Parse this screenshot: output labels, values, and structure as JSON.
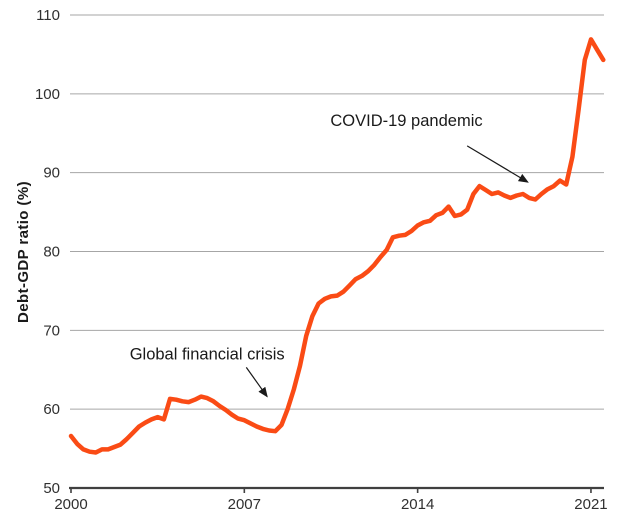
{
  "chart_data": {
    "type": "line",
    "title": "",
    "xlabel": "",
    "ylabel": "Debt-GDP ratio (%)",
    "x_unit": "year (quarterly observations)",
    "ylim": [
      50,
      110
    ],
    "yticks": [
      50,
      60,
      70,
      80,
      90,
      100,
      110
    ],
    "xticks": [
      2000,
      2007,
      2014,
      2021
    ],
    "grid": "horizontal",
    "legend": "none",
    "colors": {
      "line": "#FA4B15",
      "grid": "#A6A6A6",
      "axis": "#404040",
      "tick_text": "#303030",
      "annotation_text": "#1a1a1a",
      "background": "#ffffff"
    },
    "line_width": 4.5,
    "series": [
      {
        "name": "Debt-GDP ratio",
        "x": [
          2000,
          2000.25,
          2000.5,
          2000.75,
          2001,
          2001.25,
          2001.5,
          2001.75,
          2002,
          2002.25,
          2002.5,
          2002.75,
          2003,
          2003.25,
          2003.5,
          2003.75,
          2004,
          2004.25,
          2004.5,
          2004.75,
          2005,
          2005.25,
          2005.5,
          2005.75,
          2006,
          2006.25,
          2006.5,
          2006.75,
          2007,
          2007.25,
          2007.5,
          2007.75,
          2008,
          2008.25,
          2008.5,
          2008.75,
          2009,
          2009.25,
          2009.5,
          2009.75,
          2010,
          2010.25,
          2010.5,
          2010.75,
          2011,
          2011.25,
          2011.5,
          2011.75,
          2012,
          2012.25,
          2012.5,
          2012.75,
          2013,
          2013.25,
          2013.5,
          2013.75,
          2014,
          2014.25,
          2014.5,
          2014.75,
          2015,
          2015.25,
          2015.5,
          2015.75,
          2016,
          2016.25,
          2016.5,
          2016.75,
          2017,
          2017.25,
          2017.5,
          2017.75,
          2018,
          2018.25,
          2018.5,
          2018.75,
          2019,
          2019.25,
          2019.5,
          2019.75,
          2020,
          2020.25,
          2020.5,
          2020.75,
          2021,
          2021.25,
          2021.5
        ],
        "values": [
          56.6,
          55.6,
          54.9,
          54.6,
          54.5,
          54.9,
          54.9,
          55.2,
          55.5,
          56.2,
          57.0,
          57.8,
          58.3,
          58.7,
          59.0,
          58.7,
          61.3,
          61.2,
          61.0,
          60.9,
          61.2,
          61.6,
          61.4,
          61.0,
          60.4,
          59.9,
          59.3,
          58.8,
          58.6,
          58.2,
          57.8,
          57.5,
          57.3,
          57.2,
          58.0,
          60.0,
          62.5,
          65.5,
          69.3,
          71.8,
          73.4,
          74.0,
          74.3,
          74.4,
          74.9,
          75.7,
          76.5,
          76.9,
          77.5,
          78.3,
          79.3,
          80.2,
          81.8,
          82.0,
          82.1,
          82.6,
          83.3,
          83.7,
          83.9,
          84.6,
          84.9,
          85.7,
          84.5,
          84.7,
          85.3,
          87.3,
          88.3,
          87.8,
          87.3,
          87.5,
          87.1,
          86.8,
          87.1,
          87.3,
          86.8,
          86.6,
          87.3,
          87.9,
          88.3,
          89.0,
          88.5,
          92.0,
          98.0,
          104.3,
          106.9,
          105.6,
          104.3
        ]
      }
    ],
    "annotations": [
      {
        "text": "Global financial crisis",
        "text_anchor": {
          "year": 2005.5,
          "value": 66.3
        },
        "arrow": {
          "from": {
            "year": 2007.08,
            "value": 65.3
          },
          "to": {
            "year": 2007.92,
            "value": 61.6
          }
        }
      },
      {
        "text": "COVID-19 pandemic",
        "text_anchor": {
          "year": 2013.55,
          "value": 95.9
        },
        "arrow": {
          "from": {
            "year": 2016.0,
            "value": 93.4
          },
          "to": {
            "year": 2018.45,
            "value": 88.8
          }
        }
      }
    ]
  }
}
